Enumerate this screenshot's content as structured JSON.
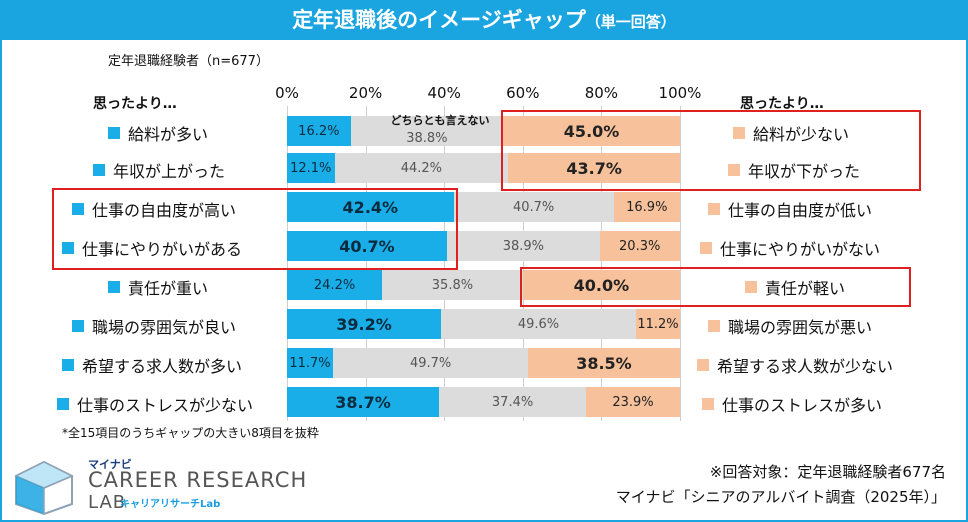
{
  "title": "定年退職後のイメージギャップ",
  "title_suffix": "（単一回答）",
  "sample_note": "定年退職経験者（n=677）",
  "left_header": "思ったより…",
  "right_header": "思ったより…",
  "neutral_label": "どちらとも言えない",
  "colors": {
    "positive": "#19aee8",
    "neutral": "#dcdcdc",
    "negative": "#f7c19b",
    "accent": "#1aa4e0",
    "highlight": "#e02020"
  },
  "chart_data": {
    "type": "bar",
    "stacked": true,
    "orientation": "horizontal",
    "x_ticks": [
      "0%",
      "20%",
      "40%",
      "60%",
      "80%",
      "100%"
    ],
    "xlim": [
      0,
      100
    ],
    "categories_left": [
      "給料が多い",
      "年収が上がった",
      "仕事の自由度が高い",
      "仕事にやりがいがある",
      "責任が重い",
      "職場の雰囲気が良い",
      "希望する求人数が多い",
      "仕事のストレスが少ない"
    ],
    "categories_right": [
      "給料が少ない",
      "年収が下がった",
      "仕事の自由度が低い",
      "仕事にやりがいがない",
      "責任が軽い",
      "職場の雰囲気が悪い",
      "希望する求人数が少ない",
      "仕事のストレスが多い"
    ],
    "series": [
      {
        "name": "思ったより…（左）",
        "values": [
          16.2,
          12.1,
          42.4,
          40.7,
          24.2,
          39.2,
          11.7,
          38.7
        ]
      },
      {
        "name": "どちらとも言えない",
        "values": [
          38.8,
          44.2,
          40.7,
          38.9,
          35.8,
          49.6,
          49.7,
          37.4
        ]
      },
      {
        "name": "思ったより…（右）",
        "values": [
          45.0,
          43.7,
          16.9,
          20.3,
          40.0,
          11.2,
          38.5,
          23.9
        ]
      }
    ],
    "labels": [
      [
        "16.2%",
        "38.8%",
        "45.0%"
      ],
      [
        "12.1%",
        "44.2%",
        "43.7%"
      ],
      [
        "42.4%",
        "40.7%",
        "16.9%"
      ],
      [
        "40.7%",
        "38.9%",
        "20.3%"
      ],
      [
        "24.2%",
        "35.8%",
        "40.0%"
      ],
      [
        "39.2%",
        "49.6%",
        "11.2%"
      ],
      [
        "11.7%",
        "49.7%",
        "38.5%"
      ],
      [
        "38.7%",
        "37.4%",
        "23.9%"
      ]
    ],
    "big_labels": [
      [
        false,
        false,
        true
      ],
      [
        false,
        false,
        true
      ],
      [
        true,
        false,
        false
      ],
      [
        true,
        false,
        false
      ],
      [
        false,
        false,
        true
      ],
      [
        true,
        false,
        false
      ],
      [
        false,
        false,
        true
      ],
      [
        true,
        false,
        false
      ]
    ]
  },
  "footnote": "*全15項目のうちギャップの大きい8項目を抜粋",
  "source_line1": "※回答対象：定年退職経験者677名",
  "source_line2": "マイナビ「シニアのアルバイト調査（2025年）」",
  "logo": {
    "brand": "マイナビ",
    "main": "CAREER RESEARCH",
    "lab": "LAB",
    "sub": "キャリアリサーチLab"
  }
}
